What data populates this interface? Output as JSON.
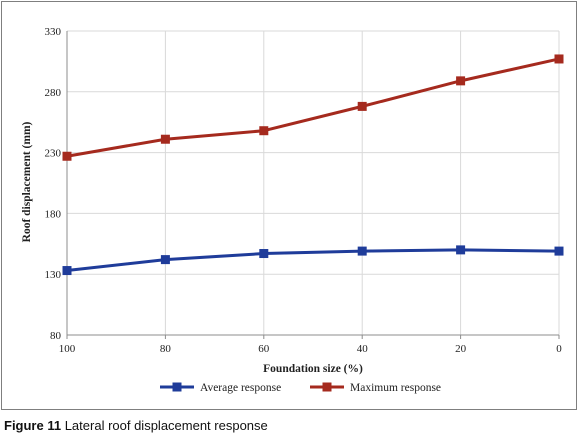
{
  "chart_data": {
    "type": "line",
    "x": [
      100,
      80,
      60,
      40,
      20,
      0
    ],
    "xlabel": "Foundation size (%)",
    "ylabel": "Roof displacement (mm)",
    "ylim": [
      80,
      330
    ],
    "yticks": [
      80,
      130,
      180,
      230,
      280,
      330
    ],
    "grid": true,
    "legend_position": "bottom",
    "series": [
      {
        "name": "Average response",
        "color": "#1f3c9a",
        "marker": "square",
        "values": [
          133,
          142,
          147,
          149,
          150,
          149
        ]
      },
      {
        "name": "Maximum response",
        "color": "#a52a1e",
        "marker": "square",
        "values": [
          227,
          241,
          248,
          268,
          289,
          307
        ]
      }
    ]
  },
  "caption": {
    "figure_label": "Figure 11",
    "text": "Lateral roof displacement response"
  }
}
